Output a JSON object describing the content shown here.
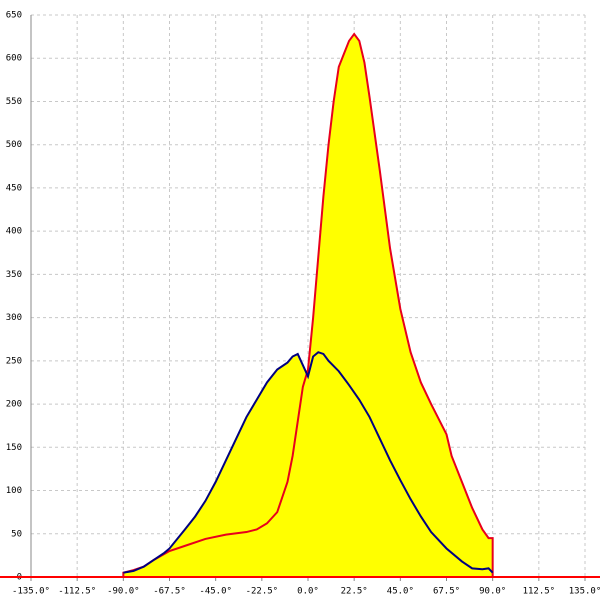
{
  "chart_data": {
    "type": "area",
    "xlim": [
      -135,
      135
    ],
    "ylim": [
      0,
      650
    ],
    "xticks": [
      {
        "value": -135,
        "label": "-135.0°"
      },
      {
        "value": -112.5,
        "label": "-112.5°"
      },
      {
        "value": -90,
        "label": "-90.0°"
      },
      {
        "value": -67.5,
        "label": "-67.5°"
      },
      {
        "value": -45,
        "label": "-45.0°"
      },
      {
        "value": -22.5,
        "label": "-22.5°"
      },
      {
        "value": 0,
        "label": "0.0°"
      },
      {
        "value": 22.5,
        "label": "22.5°"
      },
      {
        "value": 45,
        "label": "45.0°"
      },
      {
        "value": 67.5,
        "label": "67.5°"
      },
      {
        "value": 90,
        "label": "90.0°"
      },
      {
        "value": 112.5,
        "label": "112.5°"
      },
      {
        "value": 135,
        "label": "135.0°"
      }
    ],
    "yticks": [
      0,
      50,
      100,
      150,
      200,
      250,
      300,
      350,
      400,
      450,
      500,
      550,
      600,
      650
    ],
    "grid": true,
    "fill_color": "#ffff00",
    "axis_color": "#ff0000",
    "series": [
      {
        "color": "#e8001c",
        "x": [
          -90,
          -90,
          -85,
          -80,
          -75,
          -67.5,
          -60,
          -50,
          -40,
          -30,
          -25,
          -20,
          -15,
          -10,
          -7.5,
          -5,
          -2.5,
          0,
          2.5,
          5,
          7.5,
          10,
          12.5,
          15,
          17.5,
          20,
          22.5,
          25,
          27.5,
          30,
          35,
          40,
          45,
          50,
          55,
          60,
          67.5,
          70,
          75,
          80,
          85,
          88,
          90,
          90
        ],
        "values": [
          0,
          5,
          8,
          12,
          20,
          30,
          36,
          44,
          49,
          52,
          55,
          62,
          75,
          110,
          140,
          180,
          220,
          240,
          300,
          370,
          440,
          500,
          550,
          590,
          605,
          620,
          628,
          620,
          595,
          555,
          470,
          380,
          310,
          260,
          225,
          200,
          165,
          140,
          110,
          80,
          55,
          45,
          45,
          0
        ]
      },
      {
        "color": "#000080",
        "x": [
          -90,
          -85,
          -80,
          -75,
          -70,
          -67.5,
          -60,
          -55,
          -50,
          -45,
          -40,
          -35,
          -30,
          -25,
          -20,
          -15,
          -10,
          -7.5,
          -5,
          -2.5,
          0,
          2.5,
          5,
          7.5,
          10,
          15,
          20,
          25,
          30,
          35,
          40,
          45,
          50,
          55,
          60,
          67.5,
          75,
          80,
          85,
          88,
          90
        ],
        "values": [
          5,
          7,
          12,
          20,
          28,
          33,
          55,
          70,
          88,
          110,
          135,
          160,
          185,
          205,
          225,
          240,
          248,
          255,
          258,
          245,
          232,
          255,
          260,
          258,
          250,
          238,
          222,
          205,
          185,
          160,
          135,
          112,
          90,
          70,
          52,
          33,
          18,
          10,
          9,
          10,
          5
        ]
      }
    ]
  }
}
